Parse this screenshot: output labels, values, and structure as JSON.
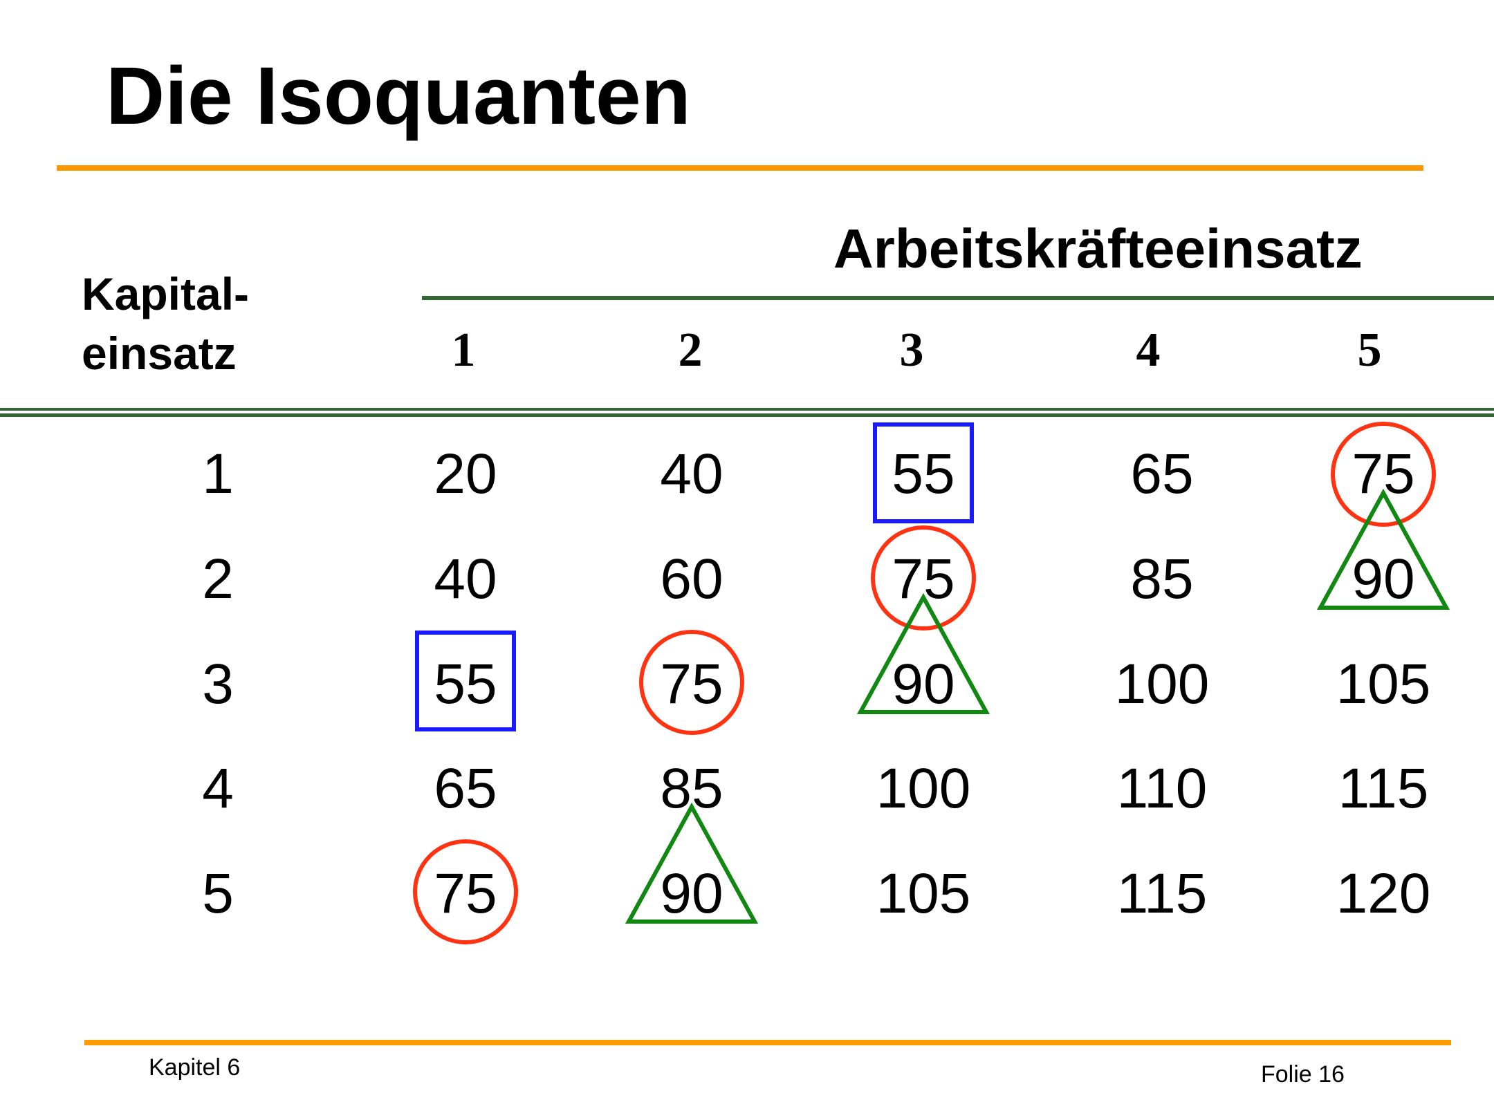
{
  "title": "Die Isoquanten",
  "table": {
    "column_header": "Arbeitskräfteeinsatz",
    "row_header_lines": [
      "Kapital-",
      "einsatz"
    ],
    "column_labels": [
      "1",
      "2",
      "3",
      "4",
      "5"
    ],
    "rows": [
      {
        "label": "1",
        "values": [
          "20",
          "40",
          "55",
          "65",
          "75"
        ]
      },
      {
        "label": "2",
        "values": [
          "40",
          "60",
          "75",
          "85",
          "90"
        ]
      },
      {
        "label": "3",
        "values": [
          "55",
          "75",
          "90",
          "100",
          "105"
        ]
      },
      {
        "label": "4",
        "values": [
          "65",
          "85",
          "100",
          "110",
          "115"
        ]
      },
      {
        "label": "5",
        "values": [
          "75",
          "90",
          "105",
          "115",
          "120"
        ]
      }
    ]
  },
  "markers": [
    {
      "shape": "square",
      "color": "#1a1aff",
      "row": 1,
      "col": 3
    },
    {
      "shape": "square",
      "color": "#1a1aff",
      "row": 3,
      "col": 1
    },
    {
      "shape": "circle",
      "color": "#ff3311",
      "row": 1,
      "col": 5
    },
    {
      "shape": "circle",
      "color": "#ff3311",
      "row": 2,
      "col": 3
    },
    {
      "shape": "circle",
      "color": "#ff3311",
      "row": 3,
      "col": 2
    },
    {
      "shape": "circle",
      "color": "#ff3311",
      "row": 5,
      "col": 1
    },
    {
      "shape": "triangle",
      "color": "#118811",
      "row": 2,
      "col": 5
    },
    {
      "shape": "triangle",
      "color": "#118811",
      "row": 3,
      "col": 3
    },
    {
      "shape": "triangle",
      "color": "#118811",
      "row": 5,
      "col": 2
    }
  ],
  "colors": {
    "accent_rule": "#ff9900",
    "table_rule": "#336633"
  },
  "footer": {
    "left": "Kapitel 6",
    "right": "Folie 16"
  }
}
